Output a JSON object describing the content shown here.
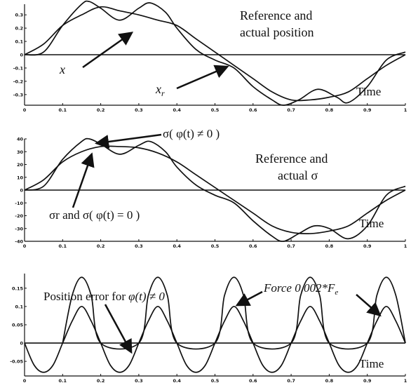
{
  "chart_data": [
    {
      "type": "line",
      "x_ticks": [
        "0",
        "0.1",
        "0.2",
        "0.3",
        "0.4",
        "0.5",
        "0.6",
        "0.7",
        "0.8",
        "0.9",
        "1"
      ],
      "y_ticks": [
        "0.3",
        "0.2",
        "0.1",
        "0",
        "-0.1",
        "-0.2",
        "-0.3"
      ],
      "xlim": [
        0,
        1
      ],
      "ylim": [
        -0.38,
        0.38
      ],
      "annotations": {
        "title_line1": "Reference and",
        "title_line2": "actual position",
        "x_label": "x",
        "xr_label_base": "x",
        "xr_label_sub": "r",
        "time": "Time"
      },
      "series": [
        {
          "x": [
            0,
            0.05,
            0.1,
            0.15,
            0.2,
            0.25,
            0.3,
            0.35,
            0.4,
            0.45,
            0.5,
            0.55,
            0.6,
            0.65,
            0.7,
            0.75,
            0.8,
            0.85,
            0.9,
            0.95,
            1
          ],
          "y": [
            0,
            0.08,
            0.22,
            0.3,
            0.36,
            0.33,
            0.3,
            0.26,
            0.22,
            0.12,
            0.02,
            -0.08,
            -0.18,
            -0.28,
            -0.34,
            -0.34,
            -0.32,
            -0.28,
            -0.18,
            -0.08,
            0
          ]
        },
        {
          "x": [
            0,
            0.05,
            0.1,
            0.15,
            0.17,
            0.2,
            0.25,
            0.3,
            0.33,
            0.37,
            0.4,
            0.45,
            0.5,
            0.55,
            0.6,
            0.65,
            0.68,
            0.72,
            0.77,
            0.82,
            0.85,
            0.9,
            0.95,
            1
          ],
          "y": [
            0,
            0.02,
            0.22,
            0.38,
            0.4,
            0.35,
            0.26,
            0.35,
            0.39,
            0.32,
            0.2,
            0.04,
            -0.04,
            -0.1,
            -0.24,
            -0.34,
            -0.38,
            -0.34,
            -0.26,
            -0.32,
            -0.36,
            -0.24,
            -0.04,
            0.02
          ]
        }
      ]
    },
    {
      "type": "line",
      "x_ticks": [
        "0",
        "0.1",
        "0.2",
        "0.3",
        "0.4",
        "0.5",
        "0.6",
        "0.7",
        "0.8",
        "0.9",
        "1"
      ],
      "y_ticks": [
        "40",
        "30",
        "20",
        "10",
        "0",
        "-10",
        "-20",
        "-30",
        "-40"
      ],
      "xlim": [
        0,
        1
      ],
      "ylim": [
        -40,
        40
      ],
      "annotations": {
        "sigma_top": "σ( φ(t) ≠ 0 )",
        "title_line1": "Reference and",
        "title_line2": "actual σ",
        "sigma_bottom": "σr and σ( φ(t) = 0 )",
        "time": "Time"
      },
      "series": [
        {
          "x": [
            0,
            0.05,
            0.1,
            0.15,
            0.2,
            0.25,
            0.3,
            0.35,
            0.4,
            0.45,
            0.5,
            0.55,
            0.6,
            0.65,
            0.7,
            0.75,
            0.8,
            0.85,
            0.9,
            0.95,
            1
          ],
          "y": [
            0,
            8,
            22,
            30,
            34,
            34,
            33,
            29,
            22,
            12,
            2,
            -8,
            -18,
            -28,
            -33,
            -34,
            -32,
            -28,
            -18,
            -8,
            0
          ]
        },
        {
          "x": [
            0,
            0.05,
            0.1,
            0.15,
            0.17,
            0.2,
            0.25,
            0.3,
            0.33,
            0.37,
            0.4,
            0.45,
            0.5,
            0.55,
            0.6,
            0.65,
            0.68,
            0.72,
            0.76,
            0.8,
            0.85,
            0.9,
            0.95,
            1
          ],
          "y": [
            0,
            3,
            24,
            38,
            40,
            36,
            28,
            35,
            38,
            30,
            18,
            4,
            -4,
            -10,
            -24,
            -36,
            -40,
            -34,
            -28,
            -30,
            -38,
            -28,
            -4,
            3
          ]
        }
      ]
    },
    {
      "type": "line",
      "x_ticks": [
        "0",
        "0.1",
        "0.2",
        "0.3",
        "0.4",
        "0.5",
        "0.6",
        "0.7",
        "0.8",
        "0.9",
        "1"
      ],
      "y_ticks": [
        "0.15",
        "0.1",
        "0.05",
        "0",
        "-0.05"
      ],
      "xlim": [
        0,
        1
      ],
      "ylim": [
        -0.09,
        0.19
      ],
      "annotations": {
        "pos_err": "Position error for",
        "pos_err_tail": "φ(t) ≠ 0",
        "force": "Force 0.002*F",
        "force_sub": "e",
        "time": "Time"
      },
      "series": [
        {
          "x": [
            0,
            0.025,
            0.05,
            0.075,
            0.1,
            0.125,
            0.15,
            0.175,
            0.2,
            0.225,
            0.25,
            0.275,
            0.3,
            0.325,
            0.35,
            0.375,
            0.4,
            0.425,
            0.45,
            0.475,
            0.5,
            0.525,
            0.55,
            0.575,
            0.6,
            0.625,
            0.65,
            0.675,
            0.7,
            0.725,
            0.75,
            0.775,
            0.8,
            0.825,
            0.85,
            0.875,
            0.9,
            0.925,
            0.95,
            0.975,
            1
          ],
          "y": [
            0,
            -0.06,
            -0.08,
            -0.06,
            0,
            0.06,
            0.1,
            0.06,
            0,
            -0.06,
            -0.08,
            -0.06,
            0,
            0.06,
            0.1,
            0.06,
            0,
            -0.06,
            -0.08,
            -0.06,
            0,
            0.06,
            0.1,
            0.06,
            0,
            -0.06,
            -0.08,
            -0.06,
            0,
            0.06,
            0.1,
            0.06,
            0,
            -0.06,
            -0.08,
            -0.06,
            0,
            0.06,
            0.1,
            0.06,
            0
          ]
        },
        {
          "x": [
            0.1,
            0.125,
            0.15,
            0.175,
            0.2,
            0.3,
            0.325,
            0.35,
            0.375,
            0.4,
            0.5,
            0.525,
            0.55,
            0.575,
            0.6,
            0.7,
            0.725,
            0.75,
            0.775,
            0.8,
            0.9,
            0.925,
            0.95,
            0.975,
            1
          ],
          "y": [
            0,
            0.13,
            0.18,
            0.13,
            0,
            0,
            0.13,
            0.18,
            0.13,
            0,
            0,
            0.13,
            0.18,
            0.13,
            0,
            0,
            0.13,
            0.18,
            0.13,
            0,
            0,
            0.13,
            0.18,
            0.13,
            0
          ]
        }
      ]
    }
  ]
}
